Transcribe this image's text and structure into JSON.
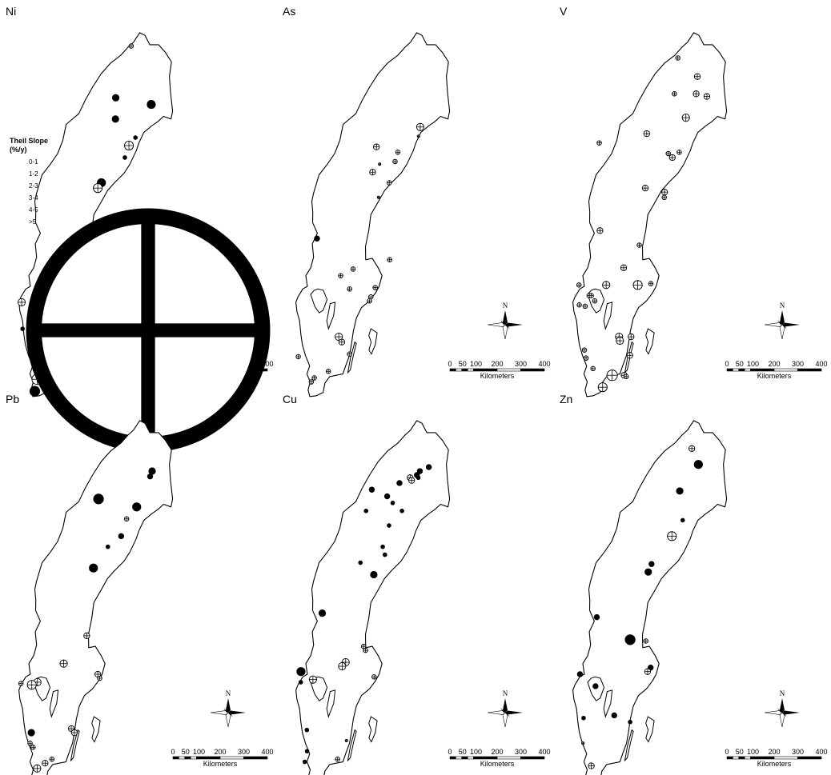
{
  "legend": {
    "title": "Theil Slope",
    "unit": "(%/y)",
    "classes": [
      {
        "label": "0-1",
        "size": 1
      },
      {
        "label": "1-2",
        "size": 2
      },
      {
        "label": "2-3",
        "size": 3
      },
      {
        "label": "3-4",
        "size": 4
      },
      {
        "label": "4-5",
        "size": 5
      },
      {
        "label": ">5",
        "size": 6
      }
    ]
  },
  "scale_bar": {
    "ticks": [
      "0",
      "50",
      "100",
      "200",
      "300",
      "400"
    ],
    "unit": "Kilometers"
  },
  "north_arrow": "N",
  "panels": [
    {
      "element": "Ni",
      "sites": [
        {
          "lon": 19.9,
          "lat": 68.55,
          "s": 2,
          "t": "plus"
        },
        {
          "lon": 18.8,
          "lat": 66.6,
          "s": 4,
          "t": "solid"
        },
        {
          "lon": 22.1,
          "lat": 66.35,
          "s": 5,
          "t": "solid"
        },
        {
          "lon": 18.9,
          "lat": 65.8,
          "s": 4,
          "t": "solid"
        },
        {
          "lon": 20.85,
          "lat": 65.1,
          "s": 2,
          "t": "solid"
        },
        {
          "lon": 20.3,
          "lat": 64.8,
          "s": 5,
          "t": "plus"
        },
        {
          "lon": 20.0,
          "lat": 64.35,
          "s": 2,
          "t": "solid"
        },
        {
          "lon": 18.0,
          "lat": 63.4,
          "s": 5,
          "t": "solid"
        },
        {
          "lon": 17.7,
          "lat": 63.2,
          "s": 5,
          "t": "plus"
        },
        {
          "lon": 13.6,
          "lat": 59.8,
          "s": 5,
          "t": "plus"
        },
        {
          "lon": 12.5,
          "lat": 59.1,
          "s": 3,
          "t": "solid"
        },
        {
          "lon": 13.45,
          "lat": 58.7,
          "s": 1,
          "t": "plus"
        },
        {
          "lon": 11.4,
          "lat": 58.9,
          "s": 4,
          "t": "plus"
        },
        {
          "lon": 12.5,
          "lat": 58.0,
          "s": 6,
          "t": "solid"
        },
        {
          "lon": 11.65,
          "lat": 57.9,
          "s": 2,
          "t": "solid"
        },
        {
          "lon": 15.7,
          "lat": 57.2,
          "s": 2,
          "t": "solid"
        },
        {
          "lon": 13.3,
          "lat": 56.0,
          "s": 6,
          "t": "plus"
        },
        {
          "lon": 13.15,
          "lat": 55.55,
          "s": 6,
          "t": "solid"
        }
      ]
    },
    {
      "element": "As",
      "sites": [
        {
          "lon": 21.5,
          "lat": 65.5,
          "s": 4,
          "t": "plus"
        },
        {
          "lon": 21.4,
          "lat": 65.15,
          "s": 1,
          "t": "plus"
        },
        {
          "lon": 17.6,
          "lat": 64.75,
          "s": 3,
          "t": "plus"
        },
        {
          "lon": 19.6,
          "lat": 64.55,
          "s": 2,
          "t": "plus"
        },
        {
          "lon": 19.4,
          "lat": 64.2,
          "s": 2,
          "t": "plus"
        },
        {
          "lon": 18.0,
          "lat": 64.1,
          "s": 1,
          "t": "plus"
        },
        {
          "lon": 17.4,
          "lat": 63.8,
          "s": 3,
          "t": "plus"
        },
        {
          "lon": 19.0,
          "lat": 63.4,
          "s": 2,
          "t": "plus"
        },
        {
          "lon": 18.1,
          "lat": 62.85,
          "s": 1,
          "t": "plus"
        },
        {
          "lon": 12.7,
          "lat": 61.3,
          "s": 3,
          "t": "solid"
        },
        {
          "lon": 16.2,
          "lat": 60.15,
          "s": 2,
          "t": "plus"
        },
        {
          "lon": 19.5,
          "lat": 60.5,
          "s": 2,
          "t": "plus"
        },
        {
          "lon": 16.0,
          "lat": 59.4,
          "s": 2,
          "t": "plus"
        },
        {
          "lon": 15.1,
          "lat": 59.9,
          "s": 2,
          "t": "plus"
        },
        {
          "lon": 18.35,
          "lat": 59.45,
          "s": 2,
          "t": "plus"
        },
        {
          "lon": 18.0,
          "lat": 59.1,
          "s": 2,
          "t": "plus"
        },
        {
          "lon": 17.9,
          "lat": 58.95,
          "s": 2,
          "t": "plus"
        },
        {
          "lon": 15.3,
          "lat": 57.6,
          "s": 4,
          "t": "plus"
        },
        {
          "lon": 15.6,
          "lat": 57.4,
          "s": 3,
          "t": "plus"
        },
        {
          "lon": 16.4,
          "lat": 56.95,
          "s": 2,
          "t": "plus"
        },
        {
          "lon": 11.7,
          "lat": 56.85,
          "s": 2,
          "t": "plus"
        },
        {
          "lon": 13.3,
          "lat": 56.05,
          "s": 2,
          "t": "plus"
        },
        {
          "lon": 13.05,
          "lat": 55.9,
          "s": 2,
          "t": "plus"
        },
        {
          "lon": 14.55,
          "lat": 56.3,
          "s": 2,
          "t": "plus"
        }
      ]
    },
    {
      "element": "V",
      "sites": [
        {
          "lon": 19.3,
          "lat": 68.1,
          "s": 2,
          "t": "plus"
        },
        {
          "lon": 21.2,
          "lat": 67.4,
          "s": 3,
          "t": "plus"
        },
        {
          "lon": 19.2,
          "lat": 66.75,
          "s": 2,
          "t": "plus"
        },
        {
          "lon": 21.2,
          "lat": 66.75,
          "s": 3,
          "t": "plus"
        },
        {
          "lon": 22.2,
          "lat": 66.65,
          "s": 3,
          "t": "plus"
        },
        {
          "lon": 20.4,
          "lat": 65.85,
          "s": 4,
          "t": "plus"
        },
        {
          "lon": 16.9,
          "lat": 65.25,
          "s": 3,
          "t": "plus"
        },
        {
          "lon": 12.6,
          "lat": 64.9,
          "s": 2,
          "t": "plus"
        },
        {
          "lon": 19.0,
          "lat": 64.5,
          "s": 2,
          "t": "plus"
        },
        {
          "lon": 20.0,
          "lat": 64.55,
          "s": 2,
          "t": "plus"
        },
        {
          "lon": 19.4,
          "lat": 64.35,
          "s": 3,
          "t": "plus"
        },
        {
          "lon": 17.1,
          "lat": 63.2,
          "s": 3,
          "t": "plus"
        },
        {
          "lon": 18.9,
          "lat": 63.05,
          "s": 3,
          "t": "plus"
        },
        {
          "lon": 18.9,
          "lat": 62.85,
          "s": 2,
          "t": "plus"
        },
        {
          "lon": 13.2,
          "lat": 61.6,
          "s": 3,
          "t": "plus"
        },
        {
          "lon": 16.9,
          "lat": 61.05,
          "s": 2,
          "t": "plus"
        },
        {
          "lon": 15.6,
          "lat": 60.2,
          "s": 3,
          "t": "plus"
        },
        {
          "lon": 14.1,
          "lat": 59.55,
          "s": 4,
          "t": "plus"
        },
        {
          "lon": 17.0,
          "lat": 59.55,
          "s": 5,
          "t": "plus"
        },
        {
          "lon": 18.2,
          "lat": 59.6,
          "s": 2,
          "t": "plus"
        },
        {
          "lon": 11.6,
          "lat": 59.55,
          "s": 2,
          "t": "plus"
        },
        {
          "lon": 12.6,
          "lat": 59.15,
          "s": 2,
          "t": "plus"
        },
        {
          "lon": 12.8,
          "lat": 59.15,
          "s": 2,
          "t": "plus"
        },
        {
          "lon": 12.3,
          "lat": 58.75,
          "s": 2,
          "t": "plus"
        },
        {
          "lon": 11.75,
          "lat": 58.8,
          "s": 2,
          "t": "plus"
        },
        {
          "lon": 13.15,
          "lat": 58.95,
          "s": 2,
          "t": "plus"
        },
        {
          "lon": 15.6,
          "lat": 57.6,
          "s": 4,
          "t": "plus"
        },
        {
          "lon": 15.7,
          "lat": 57.45,
          "s": 4,
          "t": "plus"
        },
        {
          "lon": 16.7,
          "lat": 57.6,
          "s": 3,
          "t": "plus"
        },
        {
          "lon": 12.5,
          "lat": 57.1,
          "s": 2,
          "t": "plus"
        },
        {
          "lon": 12.7,
          "lat": 56.8,
          "s": 2,
          "t": "plus"
        },
        {
          "lon": 16.7,
          "lat": 56.9,
          "s": 3,
          "t": "plus"
        },
        {
          "lon": 13.4,
          "lat": 56.4,
          "s": 2,
          "t": "plus"
        },
        {
          "lon": 15.2,
          "lat": 56.15,
          "s": 6,
          "t": "plus"
        },
        {
          "lon": 16.3,
          "lat": 56.15,
          "s": 3,
          "t": "plus"
        },
        {
          "lon": 16.5,
          "lat": 56.1,
          "s": 2,
          "t": "plus"
        },
        {
          "lon": 14.4,
          "lat": 55.7,
          "s": 5,
          "t": "plus"
        }
      ]
    },
    {
      "element": "Pb",
      "sites": [
        {
          "lon": 22.05,
          "lat": 67.15,
          "s": 4,
          "t": "solid"
        },
        {
          "lon": 21.9,
          "lat": 66.95,
          "s": 3,
          "t": "solid"
        },
        {
          "lon": 17.3,
          "lat": 66.1,
          "s": 6,
          "t": "solid"
        },
        {
          "lon": 20.85,
          "lat": 65.8,
          "s": 5,
          "t": "solid"
        },
        {
          "lon": 20.0,
          "lat": 65.35,
          "s": 2,
          "t": "plus"
        },
        {
          "lon": 19.6,
          "lat": 64.7,
          "s": 3,
          "t": "solid"
        },
        {
          "lon": 18.45,
          "lat": 64.3,
          "s": 2,
          "t": "solid"
        },
        {
          "lon": 17.25,
          "lat": 63.5,
          "s": 5,
          "t": "solid"
        },
        {
          "lon": 17.05,
          "lat": 60.95,
          "s": 3,
          "t": "plus"
        },
        {
          "lon": 15.1,
          "lat": 59.9,
          "s": 4,
          "t": "plus"
        },
        {
          "lon": 18.3,
          "lat": 59.5,
          "s": 3,
          "t": "plus"
        },
        {
          "lon": 18.5,
          "lat": 59.35,
          "s": 2,
          "t": "plus"
        },
        {
          "lon": 12.8,
          "lat": 59.2,
          "s": 4,
          "t": "plus"
        },
        {
          "lon": 12.3,
          "lat": 59.1,
          "s": 5,
          "t": "plus"
        },
        {
          "lon": 11.3,
          "lat": 59.15,
          "s": 2,
          "t": "plus"
        },
        {
          "lon": 12.55,
          "lat": 57.3,
          "s": 4,
          "t": "solid"
        },
        {
          "lon": 16.2,
          "lat": 57.45,
          "s": 3,
          "t": "plus"
        },
        {
          "lon": 16.5,
          "lat": 57.3,
          "s": 3,
          "t": "plus"
        },
        {
          "lon": 12.5,
          "lat": 56.9,
          "s": 2,
          "t": "plus"
        },
        {
          "lon": 12.8,
          "lat": 56.75,
          "s": 2,
          "t": "plus"
        },
        {
          "lon": 13.3,
          "lat": 55.95,
          "s": 4,
          "t": "plus"
        },
        {
          "lon": 14.0,
          "lat": 56.15,
          "s": 3,
          "t": "plus"
        },
        {
          "lon": 14.6,
          "lat": 56.3,
          "s": 2,
          "t": "plus"
        }
      ]
    },
    {
      "element": "Cu",
      "sites": [
        {
          "lon": 22.0,
          "lat": 67.3,
          "s": 3,
          "t": "solid"
        },
        {
          "lon": 21.2,
          "lat": 67.15,
          "s": 3,
          "t": "solid"
        },
        {
          "lon": 20.95,
          "lat": 67.0,
          "s": 3,
          "t": "solid"
        },
        {
          "lon": 21.1,
          "lat": 66.9,
          "s": 2,
          "t": "solid"
        },
        {
          "lon": 20.35,
          "lat": 66.9,
          "s": 3,
          "t": "plus"
        },
        {
          "lon": 20.5,
          "lat": 66.8,
          "s": 3,
          "t": "plus"
        },
        {
          "lon": 19.4,
          "lat": 66.7,
          "s": 3,
          "t": "solid"
        },
        {
          "lon": 16.9,
          "lat": 66.45,
          "s": 3,
          "t": "solid"
        },
        {
          "lon": 18.35,
          "lat": 66.2,
          "s": 3,
          "t": "solid"
        },
        {
          "lon": 18.9,
          "lat": 65.95,
          "s": 2,
          "t": "solid"
        },
        {
          "lon": 16.5,
          "lat": 65.65,
          "s": 2,
          "t": "solid"
        },
        {
          "lon": 19.8,
          "lat": 65.65,
          "s": 2,
          "t": "solid"
        },
        {
          "lon": 18.7,
          "lat": 65.1,
          "s": 2,
          "t": "solid"
        },
        {
          "lon": 18.25,
          "lat": 64.3,
          "s": 2,
          "t": "solid"
        },
        {
          "lon": 18.5,
          "lat": 64.0,
          "s": 2,
          "t": "solid"
        },
        {
          "lon": 16.3,
          "lat": 63.7,
          "s": 2,
          "t": "solid"
        },
        {
          "lon": 17.6,
          "lat": 63.25,
          "s": 4,
          "t": "solid"
        },
        {
          "lon": 13.1,
          "lat": 61.8,
          "s": 4,
          "t": "solid"
        },
        {
          "lon": 17.1,
          "lat": 60.55,
          "s": 2,
          "t": "plus"
        },
        {
          "lon": 17.3,
          "lat": 60.4,
          "s": 2,
          "t": "plus"
        },
        {
          "lon": 15.55,
          "lat": 59.95,
          "s": 4,
          "t": "plus"
        },
        {
          "lon": 15.25,
          "lat": 59.8,
          "s": 4,
          "t": "plus"
        },
        {
          "lon": 11.5,
          "lat": 59.6,
          "s": 5,
          "t": "solid"
        },
        {
          "lon": 11.55,
          "lat": 59.2,
          "s": 2,
          "t": "solid"
        },
        {
          "lon": 12.65,
          "lat": 59.3,
          "s": 4,
          "t": "plus"
        },
        {
          "lon": 18.25,
          "lat": 59.4,
          "s": 2,
          "t": "plus"
        },
        {
          "lon": 12.4,
          "lat": 57.4,
          "s": 2,
          "t": "solid"
        },
        {
          "lon": 12.55,
          "lat": 56.6,
          "s": 2,
          "t": "solid"
        },
        {
          "lon": 12.4,
          "lat": 56.2,
          "s": 2,
          "t": "solid"
        },
        {
          "lon": 15.4,
          "lat": 56.3,
          "s": 2,
          "t": "plus"
        },
        {
          "lon": 16.1,
          "lat": 57.0,
          "s": 1,
          "t": "plus"
        }
      ]
    },
    {
      "element": "Zn",
      "sites": [
        {
          "lon": 20.6,
          "lat": 68.0,
          "s": 3,
          "t": "plus"
        },
        {
          "lon": 21.3,
          "lat": 67.4,
          "s": 5,
          "t": "solid"
        },
        {
          "lon": 19.75,
          "lat": 66.4,
          "s": 4,
          "t": "solid"
        },
        {
          "lon": 20.2,
          "lat": 65.3,
          "s": 2,
          "t": "solid"
        },
        {
          "lon": 19.3,
          "lat": 64.7,
          "s": 5,
          "t": "plus"
        },
        {
          "lon": 17.6,
          "lat": 63.65,
          "s": 3,
          "t": "solid"
        },
        {
          "lon": 17.35,
          "lat": 63.35,
          "s": 4,
          "t": "solid"
        },
        {
          "lon": 12.9,
          "lat": 61.65,
          "s": 3,
          "t": "solid"
        },
        {
          "lon": 16.1,
          "lat": 60.8,
          "s": 6,
          "t": "solid"
        },
        {
          "lon": 17.55,
          "lat": 60.75,
          "s": 2,
          "t": "plus"
        },
        {
          "lon": 18.15,
          "lat": 59.75,
          "s": 3,
          "t": "solid"
        },
        {
          "lon": 17.9,
          "lat": 59.6,
          "s": 3,
          "t": "plus"
        },
        {
          "lon": 11.7,
          "lat": 59.5,
          "s": 3,
          "t": "solid"
        },
        {
          "lon": 13.2,
          "lat": 59.05,
          "s": 3,
          "t": "solid"
        },
        {
          "lon": 15.1,
          "lat": 57.95,
          "s": 3,
          "t": "solid"
        },
        {
          "lon": 12.3,
          "lat": 57.85,
          "s": 2,
          "t": "solid"
        },
        {
          "lon": 16.6,
          "lat": 57.7,
          "s": 2,
          "t": "solid"
        },
        {
          "lon": 12.4,
          "lat": 56.9,
          "s": 1,
          "t": "plus"
        },
        {
          "lon": 13.3,
          "lat": 56.05,
          "s": 3,
          "t": "plus"
        }
      ]
    }
  ]
}
